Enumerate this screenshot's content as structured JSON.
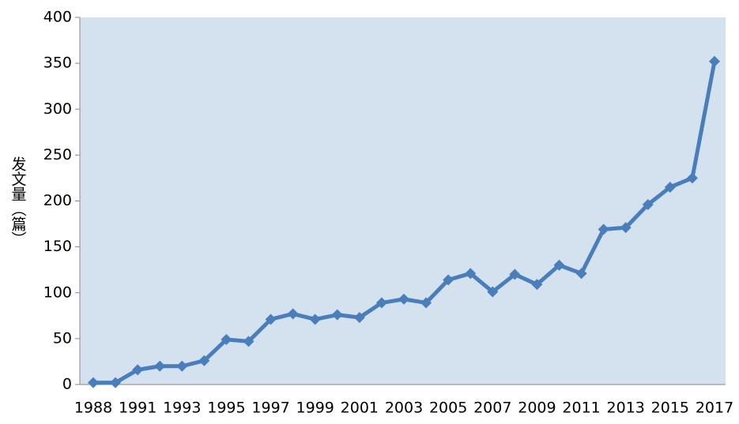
{
  "chart_data": {
    "type": "line",
    "ylabel": "发文量（篇）",
    "categories": [
      "1988",
      null,
      "1991",
      null,
      "1993",
      null,
      "1995",
      null,
      "1997",
      null,
      "1999",
      null,
      "2001",
      null,
      "2003",
      null,
      "2005",
      null,
      "2007",
      null,
      "2009",
      null,
      "2011",
      null,
      "2013",
      null,
      "2015",
      null,
      "2017"
    ],
    "series": [
      {
        "color": "#4a7ebb",
        "values": [
          2,
          2,
          16,
          20,
          20,
          26,
          49,
          47,
          71,
          77,
          71,
          76,
          73,
          89,
          93,
          89,
          114,
          121,
          101,
          120,
          109,
          130,
          121,
          169,
          171,
          196,
          215,
          225,
          352
        ]
      }
    ],
    "ylim": [
      0,
      400
    ],
    "yticks": [
      0,
      50,
      100,
      150,
      200,
      250,
      300,
      350,
      400
    ],
    "background": "#d4e1ee"
  }
}
